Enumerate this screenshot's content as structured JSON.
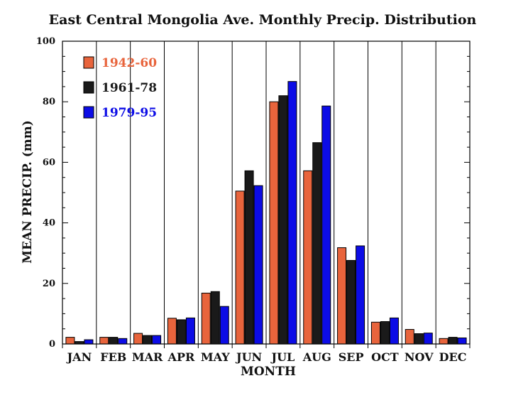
{
  "chart_data": {
    "type": "bar",
    "title": "East Central Mongolia Ave. Monthly Precip. Distribution",
    "xlabel": "MONTH",
    "ylabel": "MEAN PRECIP. (mm)",
    "ylim": [
      0,
      100
    ],
    "yticks": [
      0,
      20,
      40,
      60,
      80,
      100
    ],
    "categories": [
      "JAN",
      "FEB",
      "MAR",
      "APR",
      "MAY",
      "JUN",
      "JUL",
      "AUG",
      "SEP",
      "OCT",
      "NOV",
      "DEC"
    ],
    "legend_position": "top-left",
    "grid": false,
    "series": [
      {
        "name": "1942-60",
        "color": "#e8643c",
        "values": [
          2.2,
          2.2,
          3.5,
          8.5,
          16.8,
          50.5,
          80.0,
          57.2,
          31.8,
          7.2,
          4.8,
          1.8
        ]
      },
      {
        "name": "1961-78",
        "color": "#1a1a1a",
        "values": [
          0.8,
          2.2,
          2.8,
          8.0,
          17.3,
          57.2,
          82.0,
          66.5,
          27.6,
          7.4,
          3.4,
          2.2
        ]
      },
      {
        "name": "1979-95",
        "color": "#0c0ce6",
        "values": [
          1.4,
          1.8,
          2.8,
          8.6,
          12.4,
          52.3,
          86.7,
          78.6,
          32.4,
          8.6,
          3.6,
          2.0
        ]
      }
    ]
  }
}
